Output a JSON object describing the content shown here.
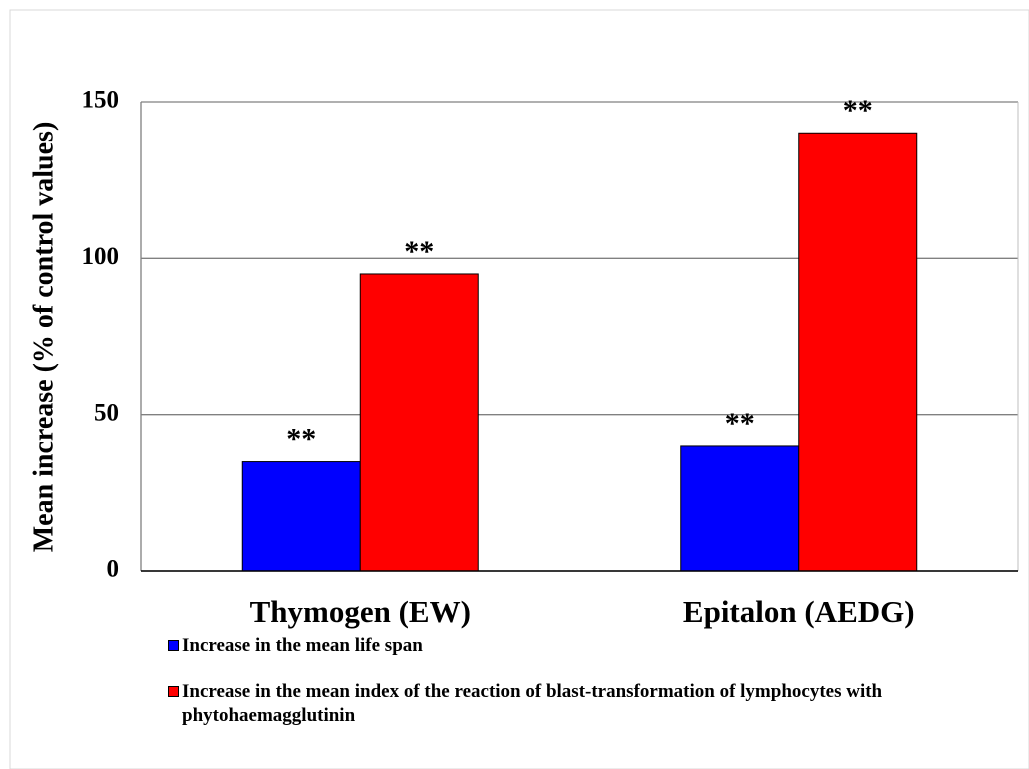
{
  "chart_data": {
    "type": "bar",
    "y_axis_label": "Mean increase (% of control values)",
    "categories": [
      "Thymogen (EW)",
      "Epitalon (AEDG)"
    ],
    "series": [
      {
        "name": "Increase in the mean life span",
        "color": "#0000ff",
        "values": [
          35,
          40
        ],
        "annotations": [
          "**",
          "**"
        ]
      },
      {
        "name": "Increase in the mean index of the reaction of blast-transformation of lymphocytes with phytohaemagglutinin",
        "color": "#ff0000",
        "values": [
          95,
          140
        ],
        "annotations": [
          "**",
          "**"
        ]
      }
    ],
    "ylim": [
      0,
      150
    ],
    "yticks": [
      0,
      50,
      100,
      150
    ],
    "grid": true
  }
}
